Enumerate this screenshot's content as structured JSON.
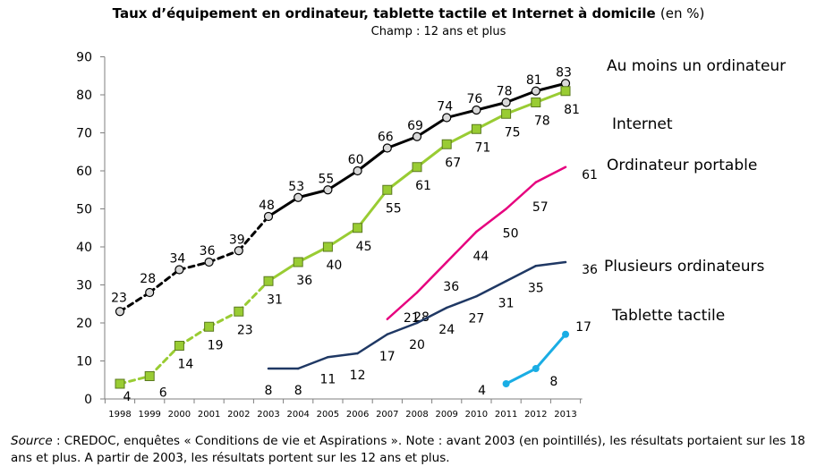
{
  "title": {
    "main": "Taux d’équipement en ordinateur, tablette tactile et Internet à domicile",
    "unit": "(en %)",
    "subtitle": "Champ : 12 ans et plus"
  },
  "source": {
    "label": "Source",
    "text": " : CREDOC, enquêtes « Conditions de vie et Aspirations ». Note : avant 2003 (en pointillés), les résultats portaient sur les 18 ans et plus. A partir de 2003, les résultats portent sur les 12 ans et plus."
  },
  "chart_data": {
    "type": "line",
    "categories": [
      "1998",
      "1999",
      "2000",
      "2001",
      "2002",
      "2003",
      "2004",
      "2005",
      "2006",
      "2007",
      "2008",
      "2009",
      "2010",
      "2011",
      "2012",
      "2013"
    ],
    "ylim": [
      0,
      90
    ],
    "yticks": [
      0,
      10,
      20,
      30,
      40,
      50,
      60,
      70,
      80,
      90
    ],
    "grid": false,
    "dashed_before": "2003",
    "series": [
      {
        "name": "Au moins un ordinateur",
        "color": "#000000",
        "marker": "circle",
        "values": [
          23,
          28,
          34,
          36,
          39,
          48,
          53,
          55,
          60,
          66,
          69,
          74,
          76,
          78,
          81,
          83
        ]
      },
      {
        "name": "Internet",
        "color": "#99CC33",
        "marker": "square",
        "values": [
          4,
          6,
          14,
          19,
          23,
          31,
          36,
          40,
          45,
          55,
          61,
          67,
          71,
          75,
          78,
          81
        ]
      },
      {
        "name": "Ordinateur portable",
        "color": "#E6007E",
        "marker": "none",
        "values": [
          null,
          null,
          null,
          null,
          null,
          null,
          null,
          null,
          null,
          21,
          28,
          36,
          44,
          50,
          57,
          61
        ]
      },
      {
        "name": "Plusieurs ordinateurs",
        "color": "#1F3864",
        "marker": "none",
        "values": [
          null,
          null,
          null,
          null,
          null,
          8,
          8,
          11,
          12,
          17,
          20,
          24,
          27,
          31,
          35,
          36
        ]
      },
      {
        "name": "Tablette tactile",
        "color": "#1AADE4",
        "marker": "dot",
        "values": [
          null,
          null,
          null,
          null,
          null,
          null,
          null,
          null,
          null,
          null,
          null,
          null,
          null,
          4,
          8,
          17
        ]
      }
    ]
  }
}
